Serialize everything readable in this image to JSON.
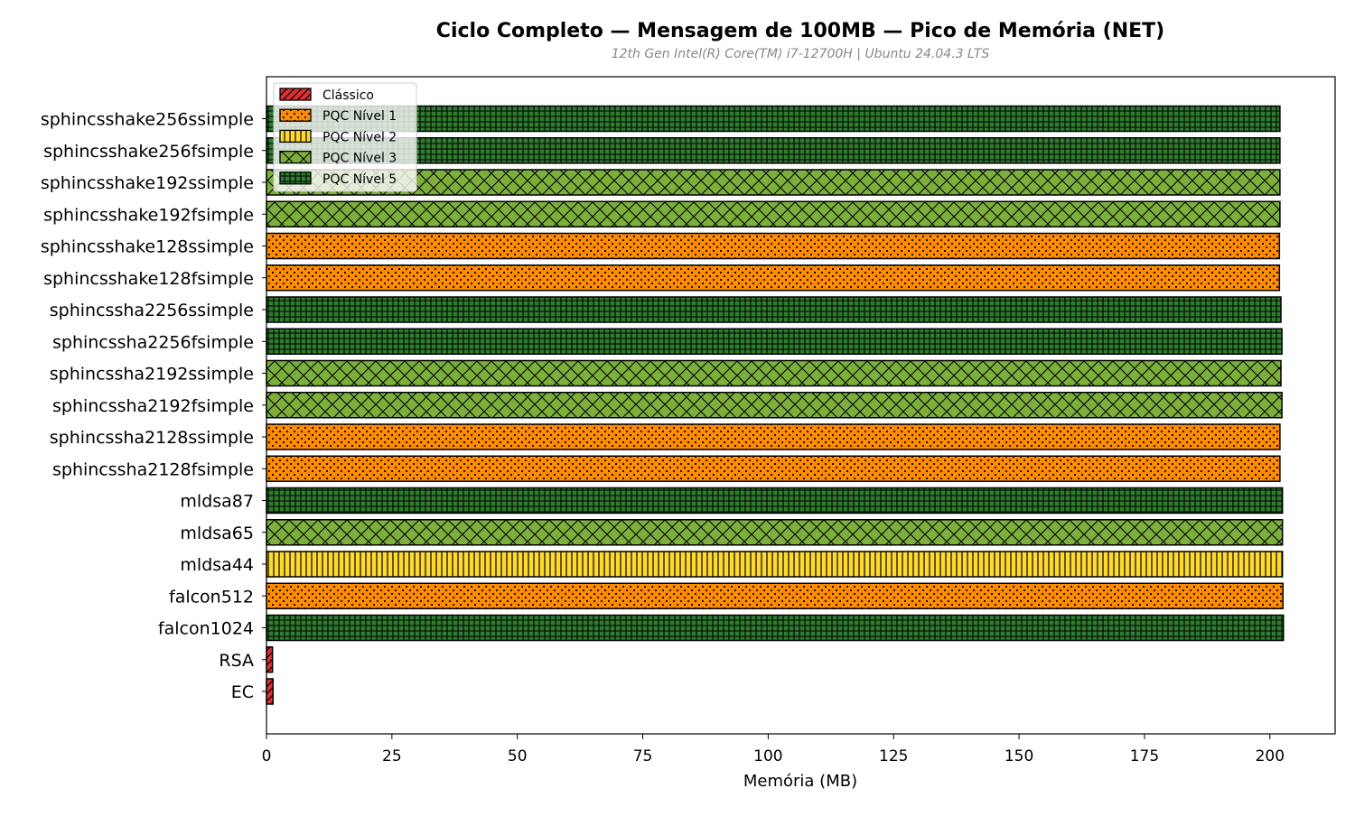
{
  "chart_data": {
    "type": "bar",
    "orientation": "horizontal",
    "title": "Ciclo Completo — Mensagem de 100MB — Pico de Memória (NET)",
    "subtitle": "12th Gen Intel(R) Core(TM) i7-12700H | Ubuntu 24.04.3 LTS",
    "xlabel": "Memória (MB)",
    "ylabel": "",
    "xlim": [
      0,
      213
    ],
    "xticks": [
      0,
      25,
      50,
      75,
      100,
      125,
      150,
      175,
      200
    ],
    "grid": false,
    "legend_position": "top-left",
    "legend": [
      {
        "name": "Clássico",
        "color": "#e03030",
        "pattern": "diagonal"
      },
      {
        "name": "PQC Nível 1",
        "color": "#ff8c00",
        "pattern": "dots"
      },
      {
        "name": "PQC Nível 2",
        "color": "#ffd930",
        "pattern": "vertical"
      },
      {
        "name": "PQC Nível 3",
        "color": "#7caf3c",
        "pattern": "crosshatch"
      },
      {
        "name": "PQC Nível 5",
        "color": "#2e7d2e",
        "pattern": "grid"
      }
    ],
    "bars": [
      {
        "category": "sphincsshake256ssimple",
        "value": 202.0,
        "level": 4
      },
      {
        "category": "sphincsshake256fsimple",
        "value": 202.0,
        "level": 4
      },
      {
        "category": "sphincsshake192ssimple",
        "value": 202.0,
        "level": 3
      },
      {
        "category": "sphincsshake192fsimple",
        "value": 202.0,
        "level": 3
      },
      {
        "category": "sphincsshake128ssimple",
        "value": 201.9,
        "level": 1
      },
      {
        "category": "sphincsshake128fsimple",
        "value": 201.9,
        "level": 1
      },
      {
        "category": "sphincssha2256ssimple",
        "value": 202.2,
        "level": 4
      },
      {
        "category": "sphincssha2256fsimple",
        "value": 202.4,
        "level": 4
      },
      {
        "category": "sphincssha2192ssimple",
        "value": 202.2,
        "level": 3
      },
      {
        "category": "sphincssha2192fsimple",
        "value": 202.4,
        "level": 3
      },
      {
        "category": "sphincssha2128ssimple",
        "value": 202.0,
        "level": 1
      },
      {
        "category": "sphincssha2128fsimple",
        "value": 202.0,
        "level": 1
      },
      {
        "category": "mldsa87",
        "value": 202.5,
        "level": 4
      },
      {
        "category": "mldsa65",
        "value": 202.5,
        "level": 3
      },
      {
        "category": "mldsa44",
        "value": 202.5,
        "level": 2
      },
      {
        "category": "falcon512",
        "value": 202.6,
        "level": 1
      },
      {
        "category": "falcon1024",
        "value": 202.7,
        "level": 4
      },
      {
        "category": "RSA",
        "value": 1.2,
        "level": 0
      },
      {
        "category": "EC",
        "value": 1.3,
        "level": 0
      }
    ]
  }
}
